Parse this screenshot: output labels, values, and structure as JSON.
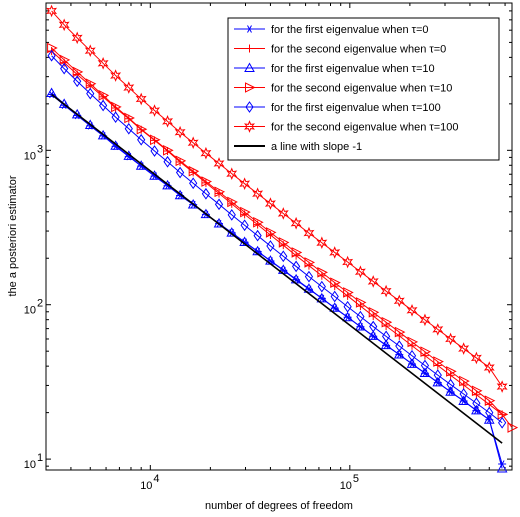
{
  "chart_data": {
    "type": "line",
    "xlabel": "number of degrees of freedom",
    "ylabel": "the a posteriori estimator",
    "xscale": "log",
    "yscale": "log",
    "xlim": [
      3000,
      650000
    ],
    "ylim": [
      8.5,
      9000
    ],
    "x_ticks": [
      {
        "value": 10000,
        "base": "10",
        "exp": "4"
      },
      {
        "value": 100000,
        "base": "10",
        "exp": "5"
      }
    ],
    "y_ticks": [
      {
        "value": 10,
        "base": "10",
        "exp": "1"
      },
      {
        "value": 100,
        "base": "10",
        "exp": "2"
      },
      {
        "value": 1000,
        "base": "10",
        "exp": "3"
      }
    ],
    "grid": false,
    "legend_position": "top-right",
    "series": [
      {
        "name": "for the first eigenvalue when τ=0",
        "color": "#0000ff",
        "marker": "star6",
        "x": [
          3200,
          3700,
          4300,
          5000,
          5800,
          6700,
          7800,
          9000,
          10500,
          12200,
          14100,
          16400,
          19000,
          22100,
          25600,
          29700,
          34500,
          40000,
          46400,
          53800,
          62400,
          72400,
          84000,
          97500,
          113000,
          131000,
          152000,
          177000,
          205000,
          238000,
          276000,
          320000,
          372000,
          431000,
          500000,
          580000
        ],
        "y": [
          2300,
          1960,
          1680,
          1440,
          1240,
          1060,
          910,
          790,
          680,
          590,
          510,
          445,
          385,
          335,
          292,
          254,
          221,
          192,
          167,
          145,
          126,
          110,
          95,
          83,
          72,
          62.5,
          54.5,
          47.5,
          41.3,
          36,
          31.3,
          27.2,
          23.8,
          20.6,
          18,
          9.3
        ]
      },
      {
        "name": "for the second  eigenvalue when τ=0",
        "color": "#ff0000",
        "marker": "plus",
        "x": [
          3200,
          3700,
          4300,
          5000,
          5800,
          6700,
          7800,
          9000,
          10500,
          12200,
          14100,
          16400,
          19000,
          22100,
          25600,
          29700,
          34500,
          40000,
          46400,
          53800,
          62400,
          72400,
          84000,
          97500,
          113000,
          131000,
          152000,
          177000,
          205000,
          238000,
          276000,
          320000,
          372000,
          431000,
          500000,
          580000
        ],
        "y": [
          4400,
          3700,
          3100,
          2620,
          2220,
          1880,
          1600,
          1360,
          1160,
          990,
          840,
          720,
          615,
          525,
          450,
          385,
          330,
          283,
          243,
          208,
          179,
          154,
          132,
          114,
          98,
          84.5,
          72.8,
          62.8,
          54.2,
          46.8,
          40.4,
          34.9,
          30.2,
          26.1,
          22.6,
          19.5
        ]
      },
      {
        "name": "for the first eigenvalue when τ=10",
        "color": "#0000ff",
        "marker": "triangle",
        "x": [
          3200,
          3700,
          4300,
          5000,
          5800,
          6700,
          7800,
          9000,
          10500,
          12200,
          14100,
          16400,
          19000,
          22100,
          25600,
          29700,
          34500,
          40000,
          46400,
          53800,
          62400,
          72400,
          84000,
          97500,
          113000,
          131000,
          152000,
          177000,
          205000,
          238000,
          276000,
          320000,
          372000,
          431000,
          500000,
          580000
        ],
        "y": [
          2350,
          2000,
          1710,
          1460,
          1250,
          1070,
          920,
          795,
          685,
          593,
          512,
          446,
          386,
          336,
          293,
          255,
          222,
          193,
          168,
          146,
          127,
          110,
          95.5,
          83,
          72.2,
          62.8,
          54.7,
          47.6,
          41.4,
          36.1,
          31.4,
          27.3,
          23.8,
          20.7,
          18,
          8.7
        ]
      },
      {
        "name": "for the second  eigenvalue when τ=10",
        "color": "#ff0000",
        "marker": "triangle-right",
        "x": [
          3200,
          3700,
          4300,
          5000,
          5800,
          6700,
          7800,
          9000,
          10500,
          12200,
          14100,
          16400,
          19000,
          22100,
          25600,
          29700,
          34500,
          40000,
          46400,
          53800,
          62400,
          72400,
          84000,
          97500,
          113000,
          131000,
          152000,
          177000,
          205000,
          238000,
          276000,
          320000,
          372000,
          431000,
          500000,
          580000,
          650000
        ],
        "y": [
          4600,
          3850,
          3220,
          2700,
          2270,
          1910,
          1620,
          1370,
          1170,
          1000,
          855,
          732,
          628,
          539,
          463,
          398,
          342,
          294,
          253,
          218,
          188,
          162,
          139,
          120,
          103.5,
          89.3,
          77,
          66.5,
          57.4,
          49.6,
          42.8,
          37,
          32,
          27.7,
          23.9,
          19.5,
          16
        ]
      },
      {
        "name": "for the first  eigenvalue when τ=100",
        "color": "#0000ff",
        "marker": "diamond",
        "x": [
          3200,
          3700,
          4300,
          5000,
          5800,
          6700,
          7800,
          9000,
          10500,
          12200,
          14100,
          16400,
          19000,
          22100,
          25600,
          29700,
          34500,
          40000,
          46400,
          53800,
          62400,
          72400,
          84000,
          97500,
          113000,
          131000,
          152000,
          177000,
          205000,
          238000,
          276000,
          320000,
          372000,
          431000,
          500000,
          580000
        ],
        "y": [
          4100,
          3380,
          2800,
          2330,
          1950,
          1640,
          1380,
          1170,
          990,
          843,
          718,
          612,
          523,
          447,
          382,
          327,
          280,
          240,
          206,
          177,
          152,
          131,
          113,
          97,
          83.7,
          72.2,
          62.4,
          54,
          46.7,
          40.4,
          35,
          30.4,
          26.4,
          23,
          20,
          17.2
        ]
      },
      {
        "name": "for the second  eigenvalue when τ=100",
        "color": "#ff0000",
        "marker": "hexagram",
        "x": [
          3200,
          3700,
          4300,
          5000,
          5800,
          6700,
          7800,
          9000,
          10500,
          12200,
          14100,
          16400,
          19000,
          22100,
          25600,
          29700,
          34500,
          40000,
          46400,
          53800,
          62400,
          72400,
          84000,
          97500,
          113000,
          131000,
          152000,
          177000,
          205000,
          238000,
          276000,
          320000,
          372000,
          431000,
          500000,
          580000
        ],
        "y": [
          8000,
          6500,
          5350,
          4420,
          3660,
          3050,
          2550,
          2150,
          1810,
          1540,
          1310,
          1120,
          958,
          822,
          706,
          608,
          524,
          452,
          390,
          337,
          291,
          252,
          218,
          189,
          163.5,
          141.5,
          122.5,
          106,
          92,
          79.8,
          69.2,
          60,
          52,
          45.2,
          39.2,
          29.5
        ]
      },
      {
        "name": "a line with slope -1",
        "color": "#000000",
        "marker": "none",
        "x": [
          3200,
          580000
        ],
        "y": [
          2300,
          12.7
        ]
      }
    ]
  }
}
